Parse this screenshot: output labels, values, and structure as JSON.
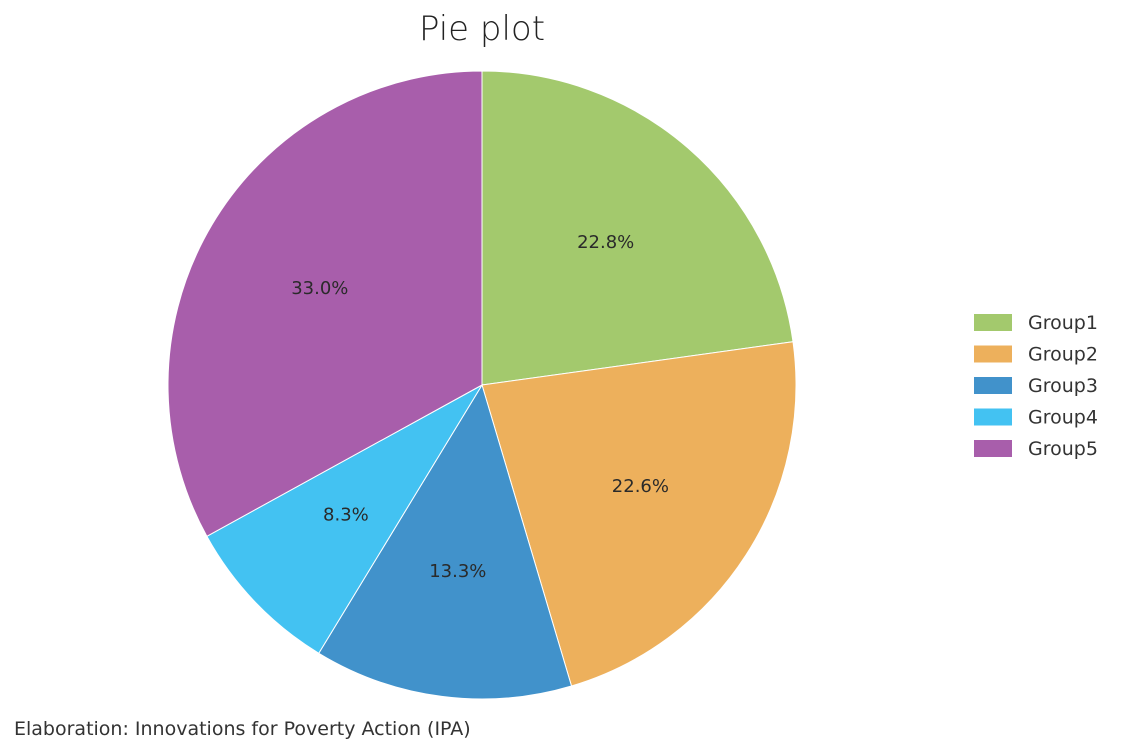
{
  "chart_data": {
    "type": "pie",
    "title": "Pie plot",
    "categories": [
      "Group1",
      "Group2",
      "Group3",
      "Group4",
      "Group5"
    ],
    "values": [
      22.8,
      22.6,
      13.3,
      8.3,
      33.0
    ],
    "value_labels": [
      "22.8%",
      "22.6%",
      "13.3%",
      "8.3%",
      "33.0%"
    ],
    "colors": [
      "#a3c96d",
      "#edb05c",
      "#4192cb",
      "#43c2f2",
      "#a85eab"
    ],
    "start": "top",
    "direction": "clockwise",
    "legend": {
      "position": "right",
      "entries": [
        "Group1",
        "Group2",
        "Group3",
        "Group4",
        "Group5"
      ]
    }
  },
  "caption": "Elaboration: Innovations for Poverty Action (IPA)"
}
